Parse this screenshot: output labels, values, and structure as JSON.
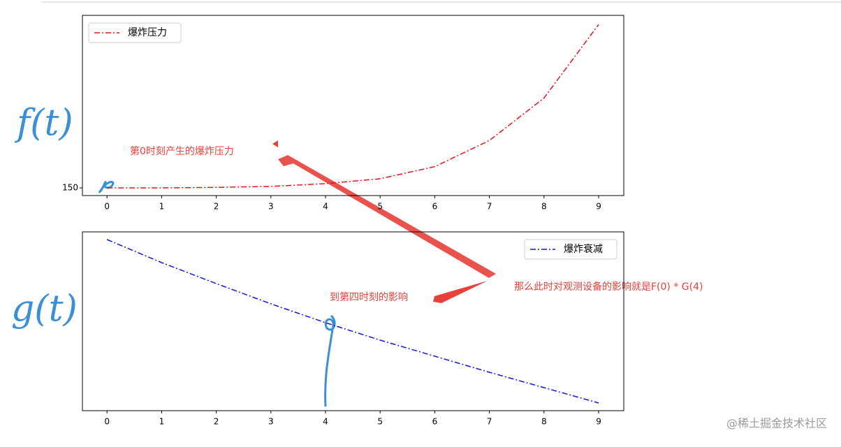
{
  "chart_data": [
    {
      "type": "line",
      "legend": "upper left",
      "x": [
        0,
        1,
        2,
        3,
        4,
        5,
        6,
        7,
        8,
        9
      ],
      "series": [
        {
          "name": "爆炸压力",
          "color": "#e8141a",
          "values": [
            0,
            0,
            0.3,
            0.9,
            2.6,
            5.6,
            13,
            29,
            55,
            100
          ]
        }
      ],
      "xlim": [
        -0.45,
        9.46
      ],
      "xticks": [
        0,
        1,
        2,
        3,
        4,
        5,
        6,
        7,
        8,
        9
      ],
      "ylim": [
        -4.7,
        105.6
      ],
      "yticks": [
        {
          "value": 0,
          "label": "150"
        }
      ]
    },
    {
      "type": "line",
      "legend": "upper right",
      "x": [
        0,
        1,
        2,
        3,
        4,
        5,
        6,
        7,
        8,
        9
      ],
      "series": [
        {
          "name": "爆炸衰减",
          "color": "#1414e0",
          "values": [
            245,
            212,
            182,
            153,
            126,
            101,
            78,
            55,
            33,
            11
          ]
        }
      ],
      "xlim": [
        -0.45,
        9.46
      ],
      "xticks": [
        0,
        1,
        2,
        3,
        4,
        5,
        6,
        7,
        8,
        9
      ],
      "ylim": [
        0,
        256
      ],
      "yticks": []
    }
  ],
  "annotations": {
    "top_note": "第0时刻产生的爆炸压力",
    "bottom_note": "到第四时刻的影响",
    "right_note": "那么此时对观测设备的影响就是F(0) * G(4)",
    "f_label": "f(t)",
    "g_label": "g(t)"
  },
  "watermark": "@稀土掘金技术社区"
}
